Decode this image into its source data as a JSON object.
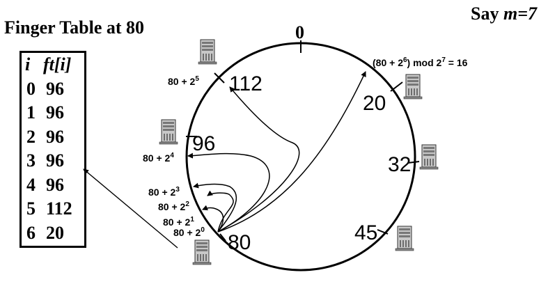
{
  "title": "Finger Table at 80",
  "say_prefix": "Say ",
  "say_var": "m=7",
  "table": {
    "header_i": "i",
    "header_ft": "ft[i]",
    "rows": [
      {
        "i": "0",
        "ft": "96"
      },
      {
        "i": "1",
        "ft": "96"
      },
      {
        "i": "2",
        "ft": "96"
      },
      {
        "i": "3",
        "ft": "96"
      },
      {
        "i": "4",
        "ft": "96"
      },
      {
        "i": "5",
        "ft": "112"
      },
      {
        "i": "6",
        "ft": "20"
      }
    ]
  },
  "ring": {
    "top_label": "0",
    "node_labels": [
      "112",
      "20",
      "96",
      "32",
      "45",
      "80"
    ],
    "finger_labels": [
      {
        "base": "80 + 2",
        "exp": "5"
      },
      {
        "base": "80 + 2",
        "exp": "4"
      },
      {
        "base": "80 + 2",
        "exp": "3"
      },
      {
        "base": "80 + 2",
        "exp": "2"
      },
      {
        "base": "80 + 2",
        "exp": "1"
      },
      {
        "base": "80 + 2",
        "exp": "0"
      }
    ],
    "mod_label": {
      "p1": "(80 + 2",
      "e1": "6",
      "p2": ") mod 2",
      "e2": "7",
      "p3": " = 16"
    }
  },
  "icons": [
    "server-icon"
  ]
}
